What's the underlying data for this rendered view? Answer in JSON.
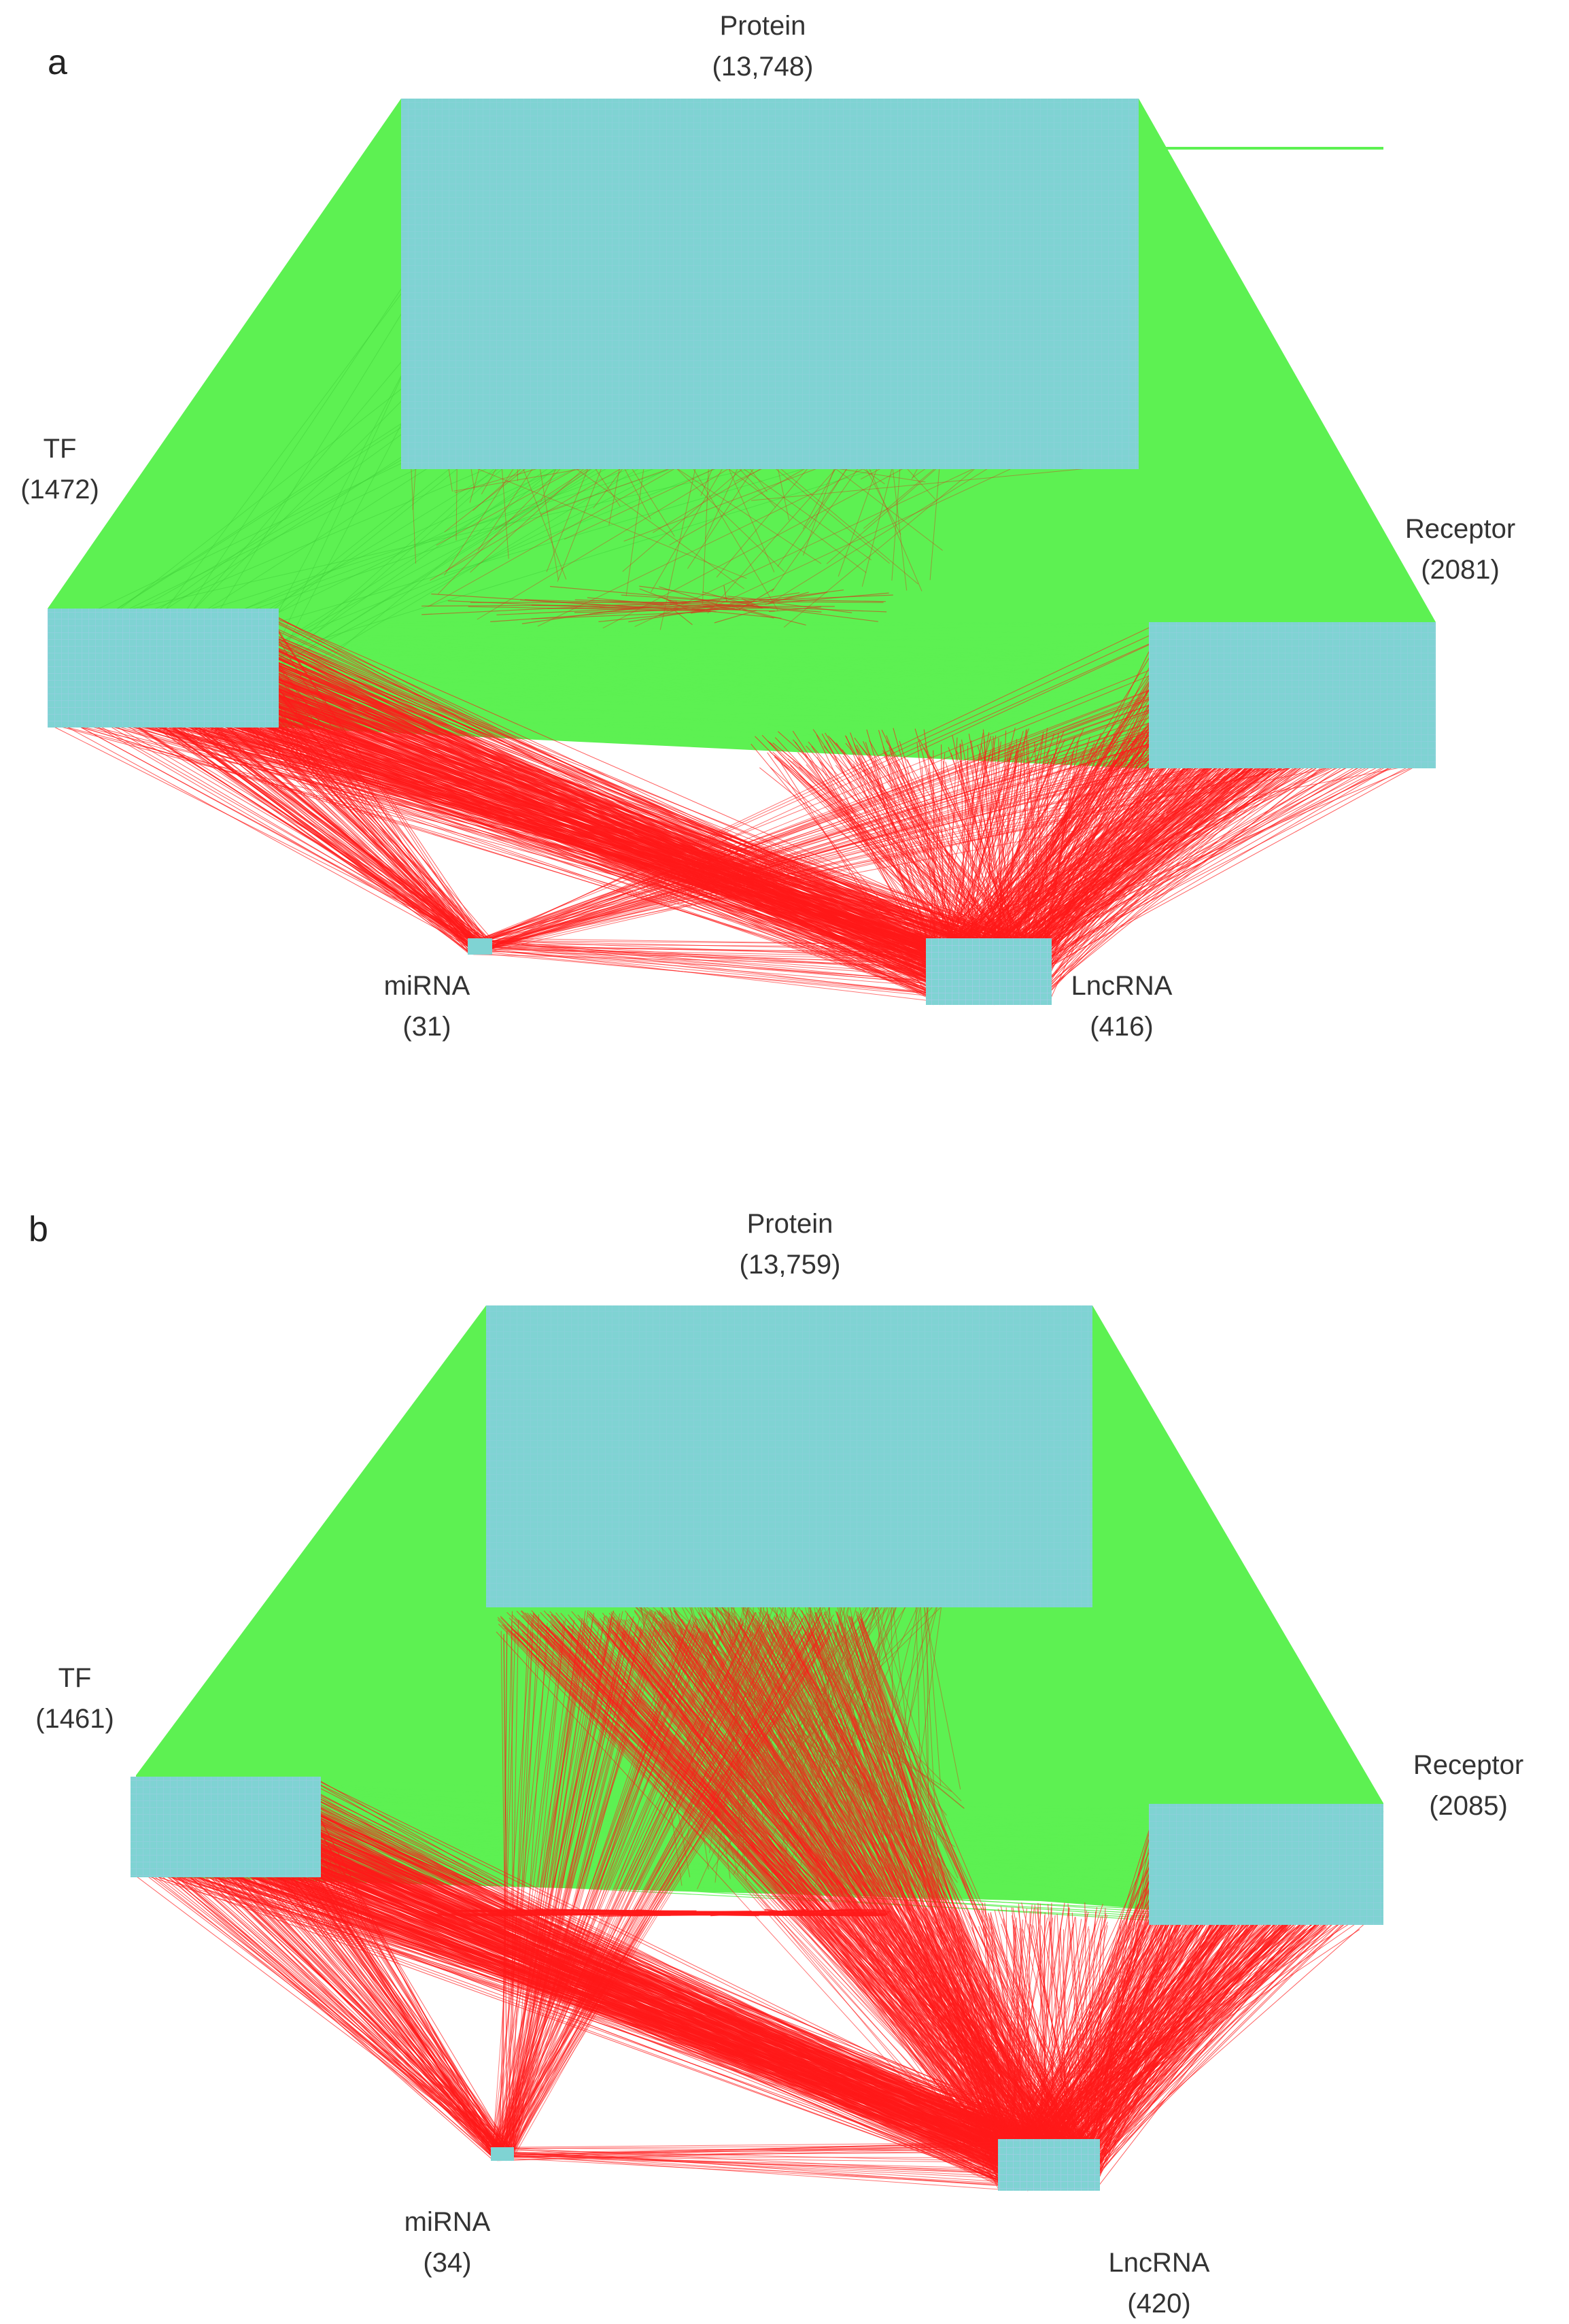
{
  "colors": {
    "inter_protein_edges": "#5df152",
    "rna_edges": "#ff1a1a",
    "node_block": "#7fd3d3",
    "node_grid": "#9cc4e8",
    "text": "#333333"
  },
  "panels": [
    {
      "letter": "a",
      "nodes": {
        "protein": {
          "name": "Protein",
          "count": "(13,748)"
        },
        "tf": {
          "name": "TF",
          "count": "(1472)"
        },
        "receptor": {
          "name": "Receptor",
          "count": "(2081)"
        },
        "mirna": {
          "name": "miRNA",
          "count": "(31)"
        },
        "lncrna": {
          "name": "LncRNA",
          "count": "(416)"
        }
      }
    },
    {
      "letter": "b",
      "nodes": {
        "protein": {
          "name": "Protein",
          "count": "(13,759)"
        },
        "tf": {
          "name": "TF",
          "count": "(1461)"
        },
        "receptor": {
          "name": "Receptor",
          "count": "(2085)"
        },
        "mirna": {
          "name": "miRNA",
          "count": "(34)"
        },
        "lncrna": {
          "name": "LncRNA",
          "count": "(420)"
        }
      }
    }
  ]
}
